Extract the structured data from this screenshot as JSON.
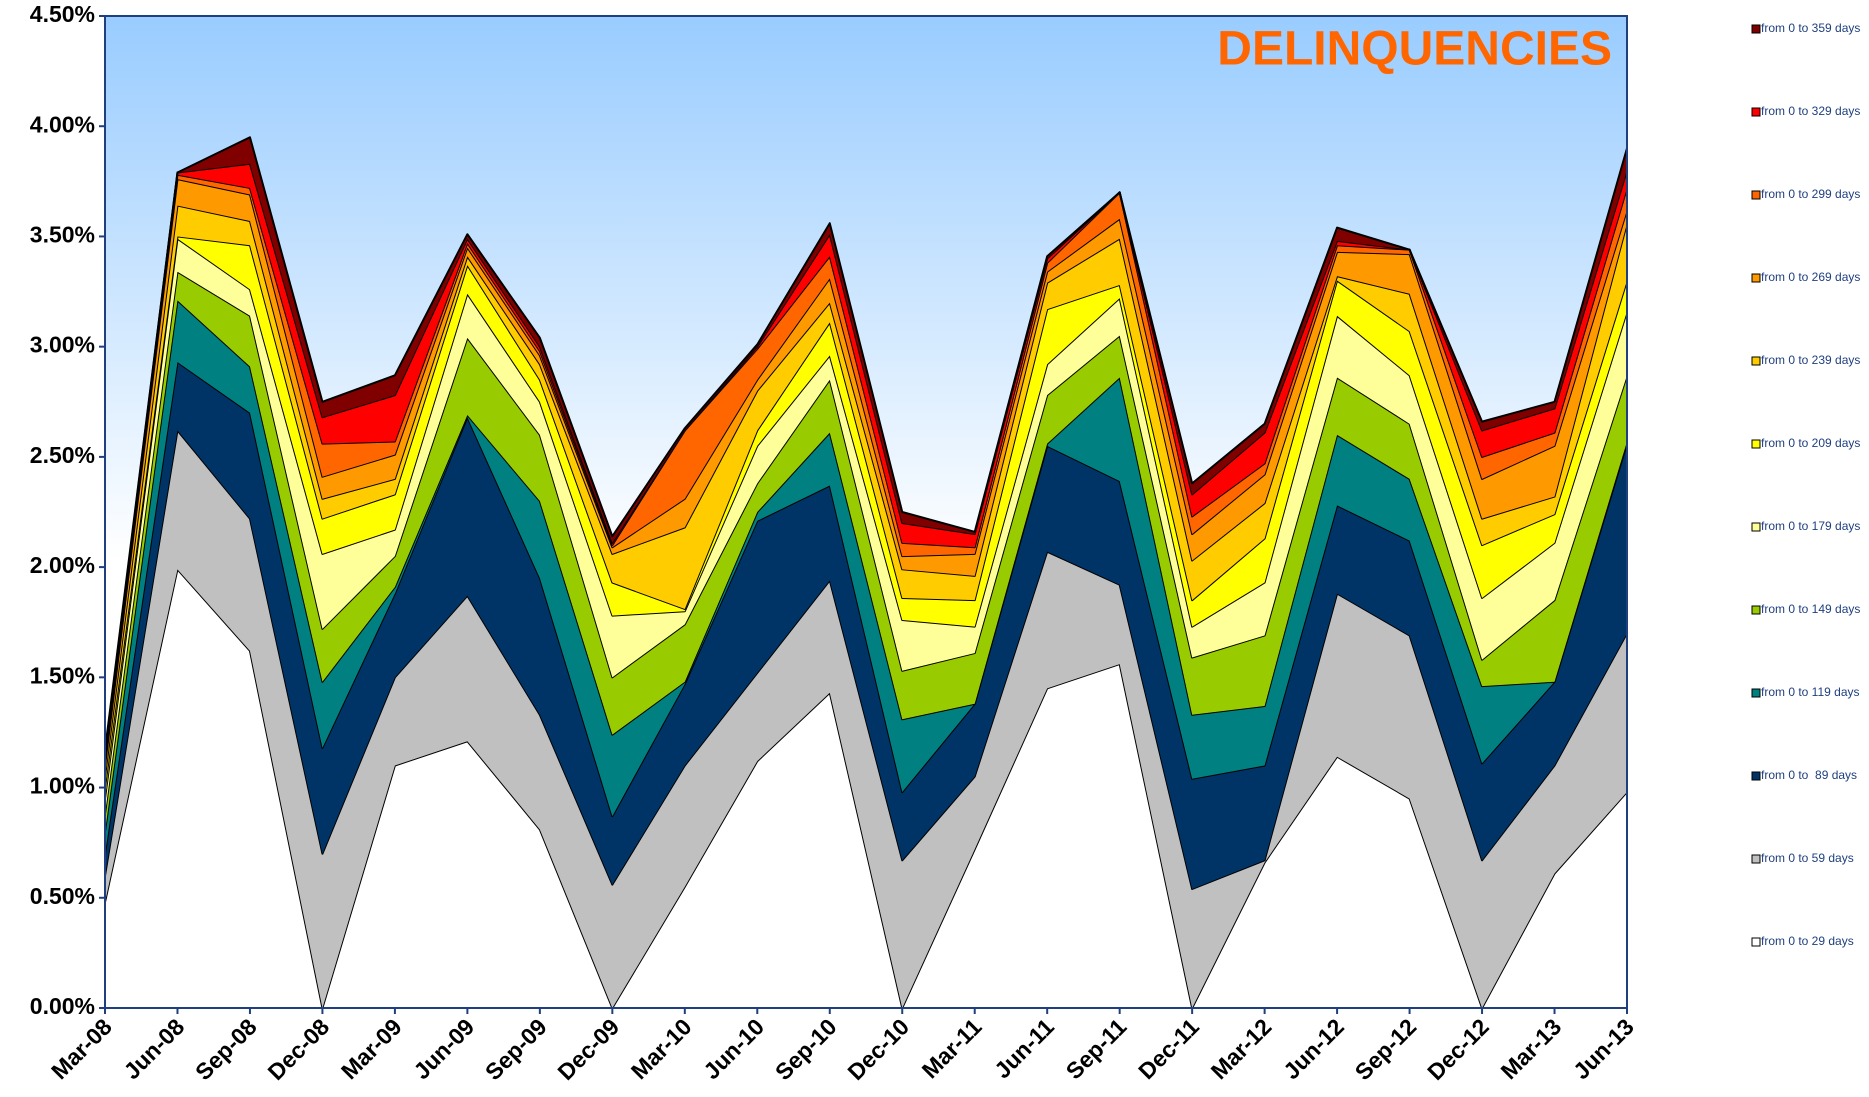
{
  "chart_data": {
    "type": "stacked_area",
    "title": "DELINQUENCIES",
    "categories": [
      "Mar-08",
      "Jun-08",
      "Sep-08",
      "Dec-08",
      "Mar-09",
      "Jun-09",
      "Sep-09",
      "Dec-09",
      "Mar-10",
      "Jun-10",
      "Sep-10",
      "Dec-10",
      "Mar-11",
      "Jun-11",
      "Sep-11",
      "Dec-11",
      "Mar-12",
      "Jun-12",
      "Sep-12",
      "Dec-12",
      "Mar-13",
      "Jun-13"
    ],
    "series": [
      {
        "name": "from 0 to 29 days",
        "color": "#ffffff",
        "values": [
          0.48,
          1.99,
          1.62,
          0,
          1.1,
          1.21,
          0.81,
          0,
          0.55,
          1.12,
          1.43,
          0,
          0.72,
          1.45,
          1.56,
          0,
          0.66,
          1.14,
          0.95,
          0,
          0.61,
          0.98
        ]
      },
      {
        "name": "from 0 to 59 days",
        "color": "#c0c0c0",
        "values": [
          0.12,
          0.63,
          0.6,
          0.7,
          0.4,
          0.66,
          0.52,
          0.56,
          0.55,
          0.4,
          0.51,
          0.67,
          0.33,
          0.62,
          0.36,
          0.54,
          0.01,
          0.74,
          0.74,
          0.67,
          0.49,
          0.72
        ]
      },
      {
        "name": "from 0 to  89 days",
        "color": "#003366",
        "values": [
          0.1,
          0.31,
          0.48,
          0.48,
          0.38,
          0.81,
          0.62,
          0.31,
          0.37,
          0.69,
          0.43,
          0.31,
          0.33,
          0.48,
          0.47,
          0.5,
          0.43,
          0.4,
          0.43,
          0.44,
          0.38,
          0.86
        ]
      },
      {
        "name": "from 0 to 119 days",
        "color": "#008080",
        "values": [
          0.1,
          0.28,
          0.21,
          0.3,
          0.03,
          0.01,
          0.35,
          0.37,
          0.01,
          0.04,
          0.24,
          0.33,
          0,
          0.01,
          0.47,
          0.29,
          0.27,
          0.32,
          0.28,
          0.35,
          0,
          0.01
        ]
      },
      {
        "name": "from 0 to 149 days",
        "color": "#99cc00",
        "values": [
          0.08,
          0.13,
          0.23,
          0.24,
          0.14,
          0.35,
          0.3,
          0.26,
          0.26,
          0.13,
          0.24,
          0.22,
          0.23,
          0.22,
          0.19,
          0.26,
          0.32,
          0.26,
          0.25,
          0.12,
          0.37,
          0.3
        ]
      },
      {
        "name": "from 0 to 179 days",
        "color": "#ffff99",
        "values": [
          0.07,
          0.15,
          0.12,
          0.34,
          0.12,
          0.2,
          0.15,
          0.28,
          0.06,
          0.17,
          0.11,
          0.23,
          0.12,
          0.14,
          0.17,
          0.14,
          0.24,
          0.28,
          0.22,
          0.28,
          0.26,
          0.29
        ]
      },
      {
        "name": "from 0 to 209 days",
        "color": "#ffff00",
        "values": [
          0.05,
          0.01,
          0.2,
          0.16,
          0.16,
          0.13,
          0.1,
          0.15,
          0.01,
          0.07,
          0.15,
          0.1,
          0.12,
          0.25,
          0.06,
          0.12,
          0.2,
          0.16,
          0.2,
          0.24,
          0.13,
          0.14
        ]
      },
      {
        "name": "from 0 to 239 days",
        "color": "#ffcc00",
        "values": [
          0.05,
          0.14,
          0.11,
          0.09,
          0.07,
          0.04,
          0.07,
          0.13,
          0.37,
          0.18,
          0.09,
          0.13,
          0.11,
          0.12,
          0.21,
          0.18,
          0.16,
          0.02,
          0.17,
          0.12,
          0.08,
          0.26
        ]
      },
      {
        "name": "from 0 to 269 days",
        "color": "#ff9900",
        "values": [
          0.05,
          0.12,
          0.12,
          0.1,
          0.11,
          0.04,
          0.04,
          0.03,
          0.13,
          0.05,
          0.11,
          0.06,
          0.1,
          0.05,
          0.09,
          0.12,
          0.13,
          0.11,
          0.18,
          0.18,
          0.23,
          0.06
        ]
      },
      {
        "name": "from 0 to 299 days",
        "color": "#ff6600",
        "values": [
          0.03,
          0.02,
          0.03,
          0.15,
          0.06,
          0.02,
          0.02,
          0.01,
          0.31,
          0.14,
          0.1,
          0.06,
          0.03,
          0.04,
          0.12,
          0.08,
          0.05,
          0.03,
          0.02,
          0.1,
          0.06,
          0.1
        ]
      },
      {
        "name": "from 0 to 329 days",
        "color": "#ff0000",
        "values": [
          0.02,
          0.01,
          0.11,
          0.12,
          0.21,
          0.02,
          0.02,
          0.01,
          0,
          0.01,
          0.1,
          0.09,
          0.06,
          0.02,
          0,
          0.1,
          0.14,
          0.02,
          0,
          0.12,
          0.11,
          0.08
        ]
      },
      {
        "name": "from 0 to 359 days",
        "color": "#800000",
        "values": [
          0.02,
          0,
          0.12,
          0.07,
          0.09,
          0.02,
          0.04,
          0.03,
          0.01,
          0.01,
          0.05,
          0.05,
          0.01,
          0.01,
          0,
          0.05,
          0.04,
          0.06,
          0,
          0.04,
          0.03,
          0.1
        ]
      }
    ],
    "ylim": [
      0,
      4.5
    ],
    "yticks": [
      {
        "value": 0,
        "label": "0.00%"
      },
      {
        "value": 0.5,
        "label": "0.50%"
      },
      {
        "value": 1,
        "label": "1.00%"
      },
      {
        "value": 1.5,
        "label": "1.50%"
      },
      {
        "value": 2,
        "label": "2.00%"
      },
      {
        "value": 2.5,
        "label": "2.50%"
      },
      {
        "value": 3,
        "label": "3.00%"
      },
      {
        "value": 3.5,
        "label": "3.50%"
      },
      {
        "value": 4,
        "label": "4.00%"
      },
      {
        "value": 4.5,
        "label": "4.50%"
      }
    ],
    "legend": "right"
  }
}
